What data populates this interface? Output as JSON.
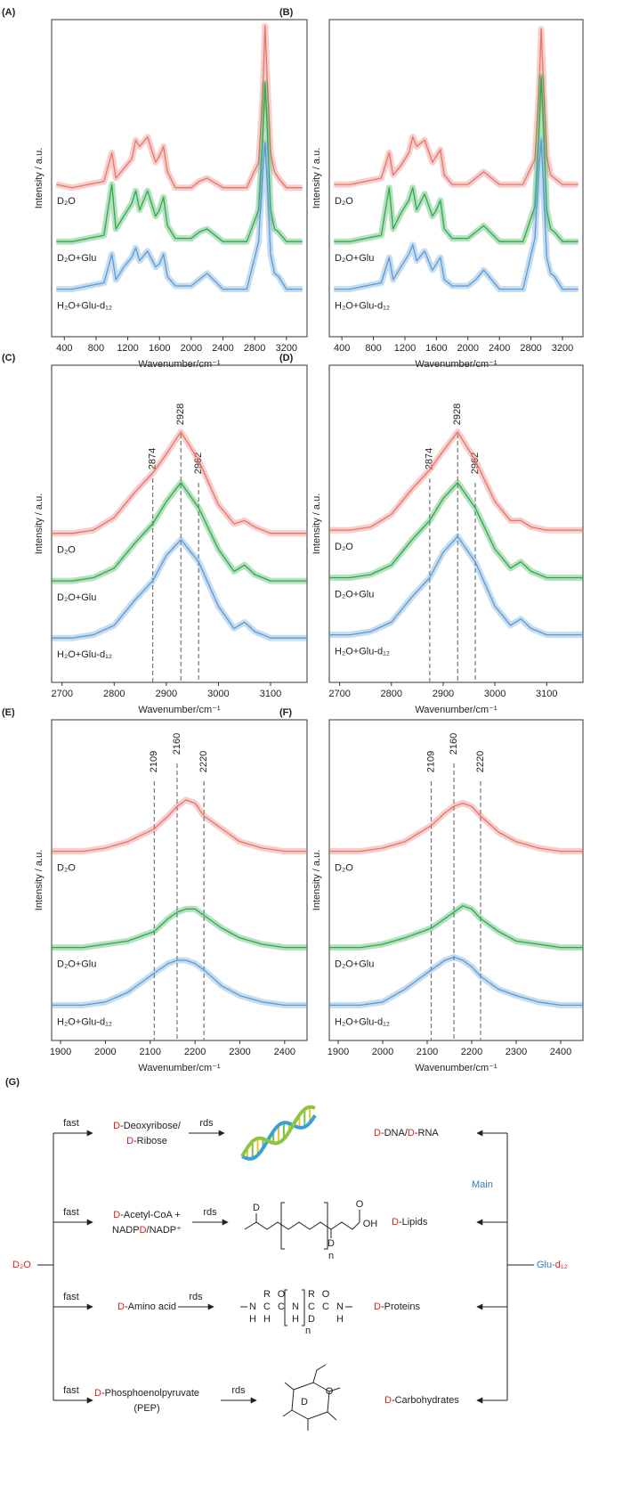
{
  "chart_data": [
    {
      "type": "line",
      "panel_label": "(A)",
      "xlabel": "Wavenumber/cm⁻¹",
      "ylabel": "Intensity / a.u.",
      "xlim": [
        240,
        3460
      ],
      "ylim": [
        0,
        100
      ],
      "xticks": [
        400,
        800,
        1200,
        1600,
        2000,
        2400,
        2800,
        3200
      ],
      "x": [
        300,
        500,
        700,
        900,
        1000,
        1050,
        1150,
        1250,
        1300,
        1350,
        1450,
        1550,
        1600,
        1650,
        1700,
        1800,
        2000,
        2100,
        2200,
        2400,
        2700,
        2850,
        2900,
        2930,
        2960,
        3000,
        3050,
        3100,
        3200,
        3400
      ],
      "series": [
        {
          "name": "D₂O",
          "color": "#e8746a",
          "values": [
            48,
            47,
            48,
            49,
            58,
            50,
            53,
            56,
            62,
            60,
            63,
            55,
            57,
            60,
            52,
            47,
            47,
            49,
            50,
            47,
            47,
            55,
            75,
            98,
            80,
            58,
            52,
            50,
            47,
            47
          ]
        },
        {
          "name": "D₂O+Glu",
          "color": "#2ea84a",
          "values": [
            30,
            30,
            31,
            32,
            48,
            34,
            38,
            42,
            46,
            40,
            46,
            38,
            40,
            44,
            35,
            31,
            31,
            33,
            34,
            30,
            30,
            40,
            62,
            80,
            65,
            40,
            34,
            33,
            30,
            30
          ]
        },
        {
          "name": "H₂O+Glu-d₁₂",
          "color": "#5b9bd5",
          "values": [
            15,
            15,
            16,
            17,
            26,
            18,
            22,
            25,
            28,
            24,
            27,
            22,
            23,
            26,
            19,
            16,
            16,
            18,
            20,
            15,
            15,
            30,
            52,
            61,
            48,
            26,
            20,
            19,
            15,
            15
          ]
        }
      ]
    },
    {
      "type": "line",
      "panel_label": "(B)",
      "xlabel": "Wavenumber/cm⁻¹",
      "ylabel": "Intensity / a.u.",
      "xlim": [
        240,
        3460
      ],
      "ylim": [
        0,
        100
      ],
      "xticks": [
        400,
        800,
        1200,
        1600,
        2000,
        2400,
        2800,
        3200
      ],
      "x": [
        300,
        500,
        700,
        900,
        1000,
        1050,
        1150,
        1250,
        1300,
        1350,
        1450,
        1550,
        1600,
        1650,
        1700,
        1800,
        2000,
        2100,
        2200,
        2400,
        2700,
        2850,
        2900,
        2930,
        2960,
        3000,
        3050,
        3100,
        3200,
        3400
      ],
      "series": [
        {
          "name": "D₂O",
          "color": "#e8746a",
          "values": [
            48,
            48,
            49,
            50,
            58,
            51,
            54,
            58,
            63,
            60,
            62,
            55,
            57,
            59,
            51,
            48,
            48,
            50,
            52,
            48,
            48,
            56,
            76,
            97,
            79,
            57,
            51,
            50,
            48,
            48
          ]
        },
        {
          "name": "D₂O+Glu",
          "color": "#2ea84a",
          "values": [
            30,
            30,
            31,
            32,
            47,
            34,
            39,
            43,
            47,
            40,
            45,
            38,
            40,
            43,
            34,
            31,
            31,
            33,
            35,
            30,
            30,
            41,
            63,
            82,
            66,
            40,
            34,
            33,
            30,
            30
          ]
        },
        {
          "name": "H₂O+Glu-d₁₂",
          "color": "#5b9bd5",
          "values": [
            15,
            15,
            16,
            17,
            25,
            18,
            22,
            26,
            29,
            24,
            27,
            21,
            23,
            25,
            18,
            16,
            16,
            18,
            21,
            15,
            15,
            31,
            53,
            62,
            47,
            25,
            20,
            19,
            15,
            15
          ]
        }
      ]
    },
    {
      "type": "line",
      "panel_label": "(C)",
      "xlabel": "Wavenumber/cm⁻¹",
      "ylabel": "Intensity / a.u.",
      "xlim": [
        2680,
        3170
      ],
      "ylim": [
        0,
        100
      ],
      "xticks": [
        2700,
        2800,
        2900,
        3000,
        3100
      ],
      "peaks": [
        2874,
        2928,
        2962
      ],
      "x": [
        2680,
        2720,
        2760,
        2800,
        2840,
        2874,
        2900,
        2928,
        2962,
        3000,
        3030,
        3050,
        3070,
        3100,
        3170
      ],
      "series": [
        {
          "name": "D₂O",
          "color": "#e8746a",
          "values": [
            47,
            47,
            48,
            52,
            60,
            66,
            72,
            79,
            70,
            56,
            50,
            51,
            49,
            47,
            47
          ]
        },
        {
          "name": "D₂O+Glu",
          "color": "#2ea84a",
          "values": [
            32,
            32,
            33,
            36,
            44,
            50,
            57,
            63,
            55,
            42,
            35,
            37,
            34,
            32,
            32
          ]
        },
        {
          "name": "H₂O+Glu-d₁₂",
          "color": "#5b9bd5",
          "values": [
            14,
            14,
            15,
            18,
            26,
            32,
            40,
            45,
            38,
            24,
            17,
            19,
            16,
            14,
            14
          ]
        }
      ]
    },
    {
      "type": "line",
      "panel_label": "(D)",
      "xlabel": "Wavenumber/cm⁻¹",
      "ylabel": "Intensity / a.u.",
      "xlim": [
        2680,
        3170
      ],
      "ylim": [
        0,
        100
      ],
      "xticks": [
        2700,
        2800,
        2900,
        3000,
        3100
      ],
      "peaks": [
        2874,
        2928,
        2962
      ],
      "x": [
        2680,
        2720,
        2760,
        2800,
        2840,
        2874,
        2900,
        2928,
        2962,
        3000,
        3030,
        3050,
        3070,
        3100,
        3170
      ],
      "series": [
        {
          "name": "D₂O",
          "color": "#e8746a",
          "values": [
            48,
            48,
            49,
            53,
            61,
            67,
            73,
            79,
            70,
            57,
            51,
            51,
            49,
            48,
            48
          ]
        },
        {
          "name": "D₂O+Glu",
          "color": "#2ea84a",
          "values": [
            33,
            33,
            34,
            37,
            45,
            51,
            58,
            63,
            55,
            42,
            36,
            38,
            35,
            33,
            33
          ]
        },
        {
          "name": "H₂O+Glu-d₁₂",
          "color": "#5b9bd5",
          "values": [
            15,
            15,
            16,
            19,
            27,
            33,
            41,
            46,
            38,
            24,
            18,
            20,
            17,
            15,
            15
          ]
        }
      ]
    },
    {
      "type": "line",
      "panel_label": "(E)",
      "xlabel": "Wavenumber/cm⁻¹",
      "ylabel": "Intensity / a.u.",
      "xlim": [
        1880,
        2450
      ],
      "ylim": [
        0,
        100
      ],
      "xticks": [
        1900,
        2000,
        2100,
        2200,
        2300,
        2400
      ],
      "peaks": [
        2109,
        2160,
        2220
      ],
      "x": [
        1880,
        1950,
        2000,
        2050,
        2109,
        2140,
        2160,
        2180,
        2200,
        2220,
        2260,
        2300,
        2350,
        2400,
        2450
      ],
      "series": [
        {
          "name": "D₂O",
          "color": "#e8746a",
          "values": [
            59,
            59,
            60,
            62,
            66,
            70,
            73,
            75,
            74,
            70,
            66,
            62,
            60,
            59,
            59
          ]
        },
        {
          "name": "D₂O+Glu",
          "color": "#2ea84a",
          "values": [
            29,
            29,
            30,
            31,
            34,
            38,
            40,
            41,
            41,
            39,
            35,
            32,
            30,
            29,
            29
          ]
        },
        {
          "name": "H₂O+Glu-d₁₂",
          "color": "#5b9bd5",
          "values": [
            11,
            11,
            12,
            15,
            21,
            24,
            25,
            25,
            24,
            22,
            17,
            14,
            12,
            11,
            11
          ]
        }
      ]
    },
    {
      "type": "line",
      "panel_label": "(F)",
      "xlabel": "Wavenumber/cm⁻¹",
      "ylabel": "Intensity / a.u.",
      "xlim": [
        1880,
        2450
      ],
      "ylim": [
        0,
        100
      ],
      "xticks": [
        1900,
        2000,
        2100,
        2200,
        2300,
        2400
      ],
      "peaks": [
        2109,
        2160,
        2220
      ],
      "x": [
        1880,
        1950,
        2000,
        2050,
        2109,
        2140,
        2160,
        2180,
        2200,
        2220,
        2260,
        2300,
        2350,
        2400,
        2450
      ],
      "series": [
        {
          "name": "D₂O",
          "color": "#e8746a",
          "values": [
            59,
            59,
            60,
            62,
            67,
            71,
            73,
            74,
            73,
            70,
            65,
            62,
            60,
            59,
            59
          ]
        },
        {
          "name": "D₂O+Glu",
          "color": "#2ea84a",
          "values": [
            29,
            29,
            30,
            32,
            35,
            38,
            40,
            42,
            41,
            38,
            34,
            31,
            30,
            29,
            29
          ]
        },
        {
          "name": "H₂O+Glu-d₁₂",
          "color": "#5b9bd5",
          "values": [
            11,
            11,
            12,
            16,
            22,
            25,
            26,
            25,
            23,
            20,
            16,
            14,
            12,
            11,
            11
          ]
        }
      ]
    }
  ],
  "diagram": {
    "label": "(G)",
    "source": [
      {
        "text": "D₂O",
        "color": "#e02020"
      }
    ],
    "target": [
      {
        "text": "Glu-",
        "color": "#2a7fc0"
      },
      {
        "text": "d₁₂",
        "color": "#e02020"
      }
    ],
    "main": [
      {
        "text": "Main",
        "color": "#2a7fc0"
      }
    ],
    "rows": [
      {
        "fast": "fast",
        "rds": "rds",
        "intermediate": [
          [
            {
              "text": "D",
              "color": "#e02020"
            },
            {
              "text": "-Deoxyribose/"
            }
          ],
          [
            {
              "text": "D",
              "color": "#e02020"
            },
            {
              "text": "-Ribose"
            }
          ]
        ],
        "product": [
          {
            "text": "D",
            "color": "#e02020"
          },
          {
            "text": "-DNA/"
          },
          {
            "text": "D",
            "color": "#e02020"
          },
          {
            "text": "-RNA"
          }
        ],
        "structure": []
      },
      {
        "fast": "fast",
        "rds": "rds",
        "intermediate": [
          [
            {
              "text": "D",
              "color": "#e02020"
            },
            {
              "text": "-Acetyl-CoA +"
            }
          ],
          [
            {
              "text": "NADP"
            },
            {
              "text": "D",
              "color": "#e02020"
            },
            {
              "text": "/NADP⁺"
            }
          ]
        ],
        "product": [
          {
            "text": "D",
            "color": "#e02020"
          },
          {
            "text": "-Lipids"
          }
        ],
        "structure": [
          {
            "text": "D",
            "color": "#e02020"
          },
          {
            "text": "D",
            "color": "#e02020"
          },
          {
            "text": "O"
          },
          {
            "text": "OH"
          },
          {
            "text": "n"
          }
        ]
      },
      {
        "fast": "fast",
        "rds": "rds",
        "intermediate": [
          [
            {
              "text": "D",
              "color": "#e02020"
            },
            {
              "text": "-Amino acid"
            }
          ]
        ],
        "product": [
          {
            "text": "D",
            "color": "#e02020"
          },
          {
            "text": "-Proteins"
          }
        ],
        "structure": [
          {
            "text": "N"
          },
          {
            "text": "C"
          },
          {
            "text": "C"
          },
          {
            "text": "N"
          },
          {
            "text": "C"
          },
          {
            "text": "C"
          },
          {
            "text": "N"
          },
          {
            "text": "H"
          },
          {
            "text": "R"
          },
          {
            "text": "O"
          },
          {
            "text": "R"
          },
          {
            "text": "O"
          },
          {
            "text": "H"
          },
          {
            "text": "H"
          },
          {
            "text": "D",
            "color": "#e02020"
          },
          {
            "text": "H"
          },
          {
            "text": "n"
          }
        ]
      },
      {
        "fast": "fast",
        "rds": "rds",
        "intermediate": [
          [
            {
              "text": "D",
              "color": "#e02020"
            },
            {
              "text": "-Phosphoenolpyruvate"
            }
          ],
          [
            {
              "text": "(PEP)"
            }
          ]
        ],
        "product": [
          {
            "text": "D",
            "color": "#e02020"
          },
          {
            "text": "-Carbohydrates"
          }
        ],
        "structure": [
          {
            "text": "O"
          },
          {
            "text": "D",
            "color": "#e02020"
          }
        ]
      }
    ]
  }
}
